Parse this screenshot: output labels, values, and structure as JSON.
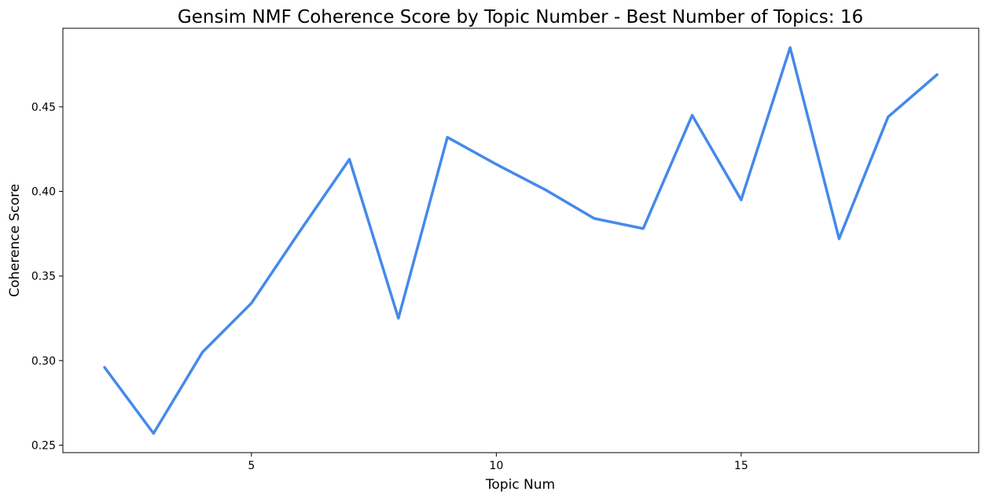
{
  "chart_data": {
    "type": "line",
    "title": "Gensim NMF Coherence Score by Topic Number - Best Number of Topics: 16",
    "xlabel": "Topic Num",
    "ylabel": "Coherence Score",
    "x": [
      2,
      3,
      4,
      5,
      6,
      7,
      8,
      9,
      10,
      11,
      12,
      13,
      14,
      15,
      16,
      17,
      18,
      19
    ],
    "series": [
      {
        "color": "#4589EA",
        "values": [
          0.296,
          0.257,
          0.305,
          0.334,
          0.377,
          0.419,
          0.325,
          0.432,
          0.416,
          0.401,
          0.384,
          0.378,
          0.445,
          0.395,
          0.485,
          0.372,
          0.444,
          0.469
        ]
      }
    ],
    "xticks": [
      5,
      10,
      15
    ],
    "xtick_labels": [
      "5",
      "10",
      "15"
    ],
    "yticks": [
      0.25,
      0.3,
      0.35,
      0.4,
      0.45
    ],
    "ytick_labels": [
      "0.25",
      "0.30",
      "0.35",
      "0.40",
      "0.45"
    ],
    "xlim": [
      1.15,
      19.85
    ],
    "ylim": [
      0.2456,
      0.4964
    ],
    "grid": false,
    "legend": "none"
  }
}
